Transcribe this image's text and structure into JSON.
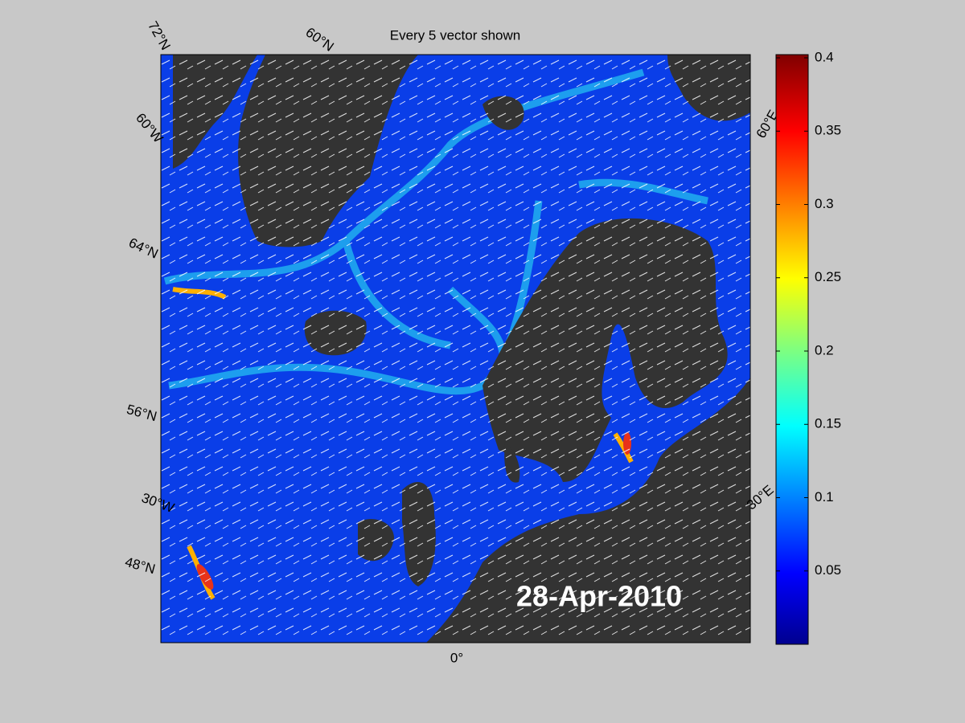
{
  "title": "Every 5 vector shown",
  "date_label": "28-Apr-2010",
  "grid_labels": {
    "lat_72n": "72°N",
    "lat_60n": "60°N",
    "lon_60w": "60°W",
    "lat_64n": "64°N",
    "lat_56n": "56°N",
    "lon_30w": "30°W",
    "lat_48n": "48°N",
    "lon_0": "0°",
    "lon_60e": "60°E",
    "lon_30e": "30°E"
  },
  "colorbar": {
    "lim": [
      0,
      0.4
    ],
    "ticks": [
      0.05,
      0.1,
      0.15,
      0.2,
      0.25,
      0.3,
      0.35,
      0.4
    ]
  }
}
